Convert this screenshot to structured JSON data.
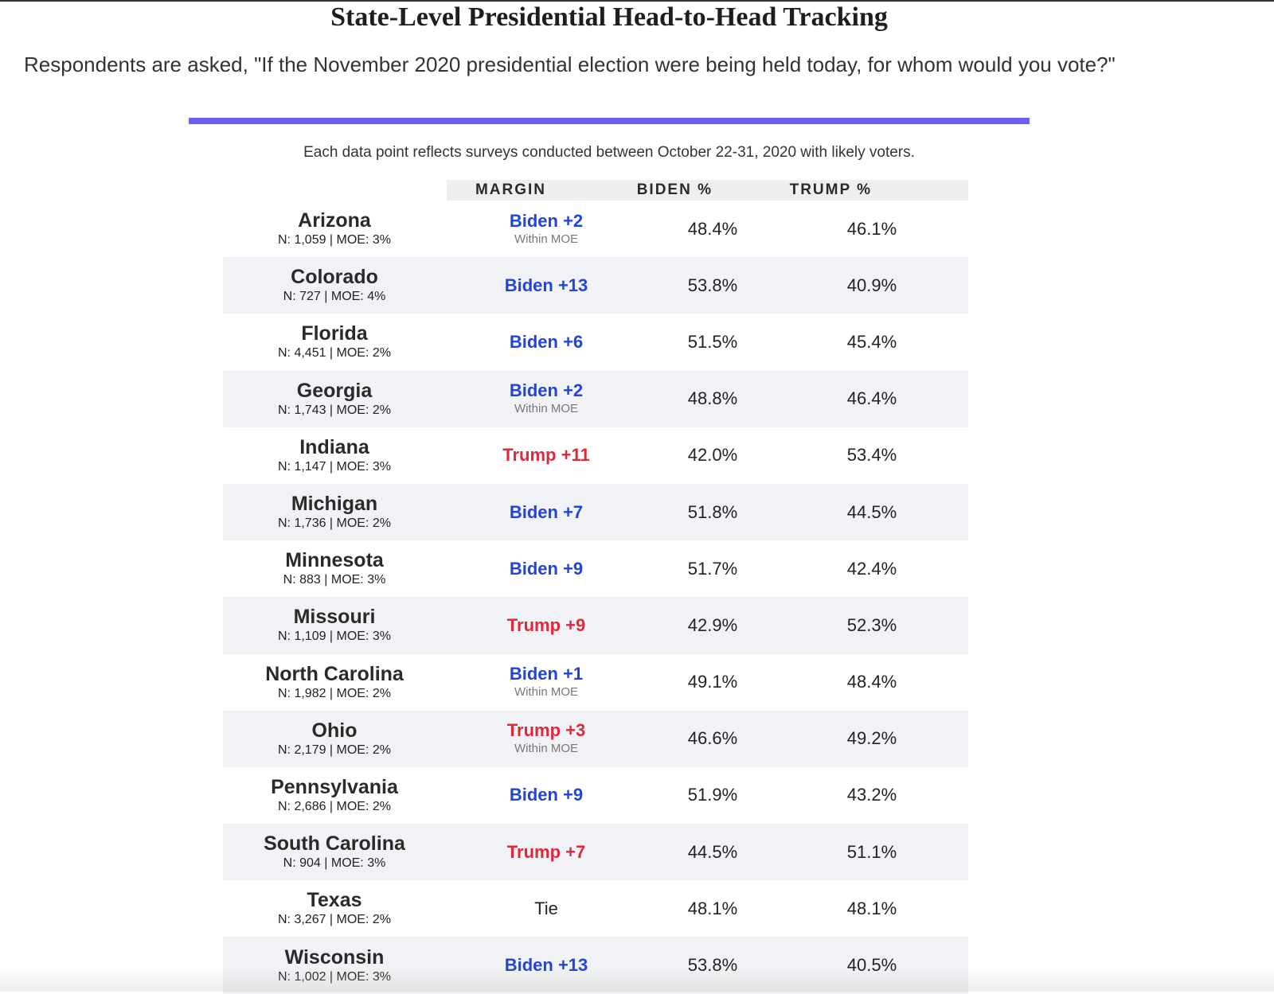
{
  "page": {
    "title": "State-Level Presidential Head-to-Head Tracking",
    "subtitle": "Respondents are asked, \"If the November 2020 presidential election were being held today, for whom would you vote?\"",
    "accent_color": "#6d5ef0",
    "note": "Each data point reflects surveys conducted between October 22-31, 2020 with likely voters."
  },
  "table": {
    "headers": {
      "margin": "MARGIN",
      "biden": "BIDEN %",
      "trump": "TRUMP %"
    },
    "colors": {
      "biden": "#2145d4",
      "trump": "#e0283a"
    },
    "rows": [
      {
        "state": "Arizona",
        "meta": "N: 1,059 | MOE: 3%",
        "margin": "Biden +2",
        "leader": "biden",
        "moe_note": "Within MOE",
        "biden": "48.4%",
        "trump": "46.1%"
      },
      {
        "state": "Colorado",
        "meta": "N: 727 | MOE: 4%",
        "margin": "Biden +13",
        "leader": "biden",
        "moe_note": "",
        "biden": "53.8%",
        "trump": "40.9%"
      },
      {
        "state": "Florida",
        "meta": "N: 4,451 | MOE: 2%",
        "margin": "Biden +6",
        "leader": "biden",
        "moe_note": "",
        "biden": "51.5%",
        "trump": "45.4%"
      },
      {
        "state": "Georgia",
        "meta": "N: 1,743 | MOE: 2%",
        "margin": "Biden +2",
        "leader": "biden",
        "moe_note": "Within MOE",
        "biden": "48.8%",
        "trump": "46.4%"
      },
      {
        "state": "Indiana",
        "meta": "N: 1,147 | MOE: 3%",
        "margin": "Trump +11",
        "leader": "trump",
        "moe_note": "",
        "biden": "42.0%",
        "trump": "53.4%"
      },
      {
        "state": "Michigan",
        "meta": "N: 1,736 | MOE: 2%",
        "margin": "Biden +7",
        "leader": "biden",
        "moe_note": "",
        "biden": "51.8%",
        "trump": "44.5%"
      },
      {
        "state": "Minnesota",
        "meta": "N: 883 | MOE: 3%",
        "margin": "Biden +9",
        "leader": "biden",
        "moe_note": "",
        "biden": "51.7%",
        "trump": "42.4%"
      },
      {
        "state": "Missouri",
        "meta": "N: 1,109 | MOE: 3%",
        "margin": "Trump +9",
        "leader": "trump",
        "moe_note": "",
        "biden": "42.9%",
        "trump": "52.3%"
      },
      {
        "state": "North Carolina",
        "meta": "N: 1,982 | MOE: 2%",
        "margin": "Biden +1",
        "leader": "biden",
        "moe_note": "Within MOE",
        "biden": "49.1%",
        "trump": "48.4%"
      },
      {
        "state": "Ohio",
        "meta": "N: 2,179 | MOE: 2%",
        "margin": "Trump +3",
        "leader": "trump",
        "moe_note": "Within MOE",
        "biden": "46.6%",
        "trump": "49.2%"
      },
      {
        "state": "Pennsylvania",
        "meta": "N: 2,686 | MOE: 2%",
        "margin": "Biden +9",
        "leader": "biden",
        "moe_note": "",
        "biden": "51.9%",
        "trump": "43.2%"
      },
      {
        "state": "South Carolina",
        "meta": "N: 904 | MOE: 3%",
        "margin": "Trump +7",
        "leader": "trump",
        "moe_note": "",
        "biden": "44.5%",
        "trump": "51.1%"
      },
      {
        "state": "Texas",
        "meta": "N: 3,267 | MOE: 2%",
        "margin": "Tie",
        "leader": "tie",
        "moe_note": "",
        "biden": "48.1%",
        "trump": "48.1%"
      },
      {
        "state": "Wisconsin",
        "meta": "N: 1,002 | MOE: 3%",
        "margin": "Biden +13",
        "leader": "biden",
        "moe_note": "",
        "biden": "53.8%",
        "trump": "40.5%"
      }
    ]
  }
}
